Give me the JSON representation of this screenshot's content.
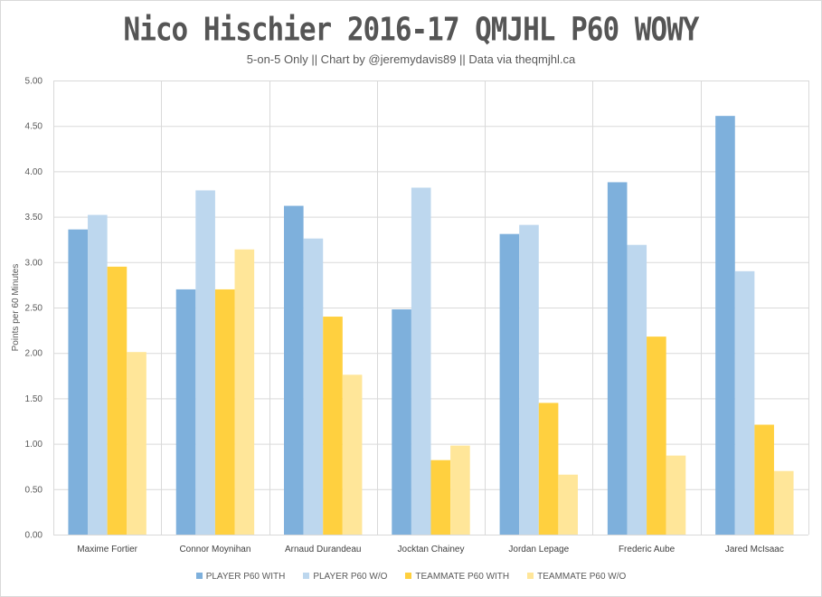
{
  "chart_data": {
    "type": "bar",
    "title": "Nico Hischier 2016-17 QMJHL P60 WOWY",
    "subtitle": "5-on-5 Only || Chart by @jeremydavis89 || Data via theqmjhl.ca",
    "xlabel": "",
    "ylabel": "Points per 60 Minutes",
    "ylim": [
      0,
      5
    ],
    "yticks": [
      "0.00",
      "0.50",
      "1.00",
      "1.50",
      "2.00",
      "2.50",
      "3.00",
      "3.50",
      "4.00",
      "4.50",
      "5.00"
    ],
    "grid": true,
    "legend_position": "bottom",
    "categories": [
      "Maxime Fortier",
      "Connor Moynihan",
      "Arnaud Durandeau",
      "Jocktan Chainey",
      "Jordan Lepage",
      "Frederic Aube",
      "Jared McIsaac"
    ],
    "series": [
      {
        "name": "PLAYER P60 WITH",
        "color": "#7eb0dc",
        "values": [
          3.36,
          2.7,
          3.62,
          2.48,
          3.31,
          3.88,
          4.61
        ]
      },
      {
        "name": "PLAYER P60 W/O",
        "color": "#bdd7ee",
        "values": [
          3.52,
          3.79,
          3.26,
          3.82,
          3.41,
          3.19,
          2.9
        ]
      },
      {
        "name": "TEAMMATE P60 WITH",
        "color": "#ffd03f",
        "values": [
          2.95,
          2.7,
          2.4,
          0.82,
          1.45,
          2.18,
          1.21
        ]
      },
      {
        "name": "TEAMMATE P60 W/O",
        "color": "#ffe699",
        "values": [
          2.01,
          3.14,
          1.76,
          0.98,
          0.66,
          0.87,
          0.7
        ]
      }
    ]
  }
}
